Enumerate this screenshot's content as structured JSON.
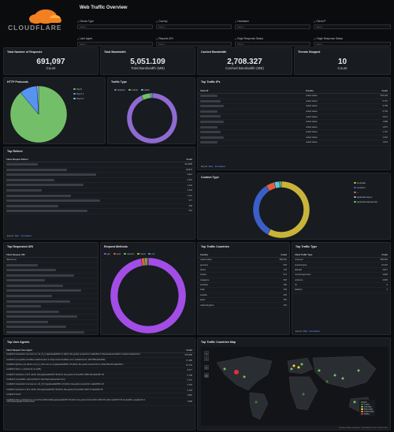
{
  "dashboard": {
    "title": "Web Traffic Overview"
  },
  "logo": {
    "text": "CLOUDFLARE"
  },
  "filters": {
    "device_type": {
      "label": "Device Type",
      "placeholder": "Select..."
    },
    "country": {
      "label": "Country",
      "placeholder": "Select..."
    },
    "hostname": {
      "label": "Hostname",
      "placeholder": "Select..."
    },
    "client_ip": {
      "label": "Client IP",
      "placeholder": "Select..."
    },
    "user_agent": {
      "label": "User Agent",
      "placeholder": "Select..."
    },
    "request_uri": {
      "label": "Request URI",
      "placeholder": "Select..."
    },
    "edge_status": {
      "label": "Edge Response Status",
      "placeholder": "Select..."
    },
    "origin_status": {
      "label": "Origin Response Status",
      "placeholder": "Select..."
    }
  },
  "stats": {
    "requests": {
      "title": "Total Number of Requests",
      "value": "691,097",
      "unit": "Count"
    },
    "bandwidth": {
      "title": "Total Bandwidth",
      "value": "5,051.109",
      "unit": "Total Bandwidth (MB)"
    },
    "cached": {
      "title": "Cached Bandwidth",
      "value": "2,708.327",
      "unit": "Cached Bandwidth (MB)"
    },
    "threats": {
      "title": "Threats Stopped",
      "value": "10",
      "unit": "Count"
    }
  },
  "http_protocols": {
    "title": "HTTP Protocols",
    "legend": [
      "http/2",
      "http/1.1",
      "http/1.0"
    ],
    "colors": [
      "#73bf69",
      "#5794f2",
      "#8ab8ff"
    ],
    "values": [
      89,
      10,
      1
    ]
  },
  "traffic_type": {
    "title": "Traffic Type",
    "legend": [
      "desktop",
      "mobile",
      "tablet"
    ],
    "colors": [
      "#8f6bd1",
      "#73bf69",
      "#5ec4e6"
    ],
    "values": [
      93,
      6,
      1
    ]
  },
  "top_ips": {
    "title": "Top Traffic IPs",
    "headers": [
      "Client IP",
      "Country",
      "Count"
    ],
    "rows": [
      [
        "united states",
        "578,233"
      ],
      [
        "united states",
        "5,767"
      ],
      [
        "united states",
        "5,795"
      ],
      [
        "united states",
        "5,763"
      ],
      [
        "united states",
        "2,021"
      ],
      [
        "united states",
        "1,989"
      ],
      [
        "united states",
        "1,874"
      ],
      [
        "united states",
        "1,731"
      ],
      [
        "united states",
        "1,491"
      ],
      [
        "united states",
        "1,514"
      ]
    ],
    "export": "Export",
    "csv": "Raw",
    "formatted": "Formatted"
  },
  "top_referer": {
    "title": "Top Referer",
    "headers": [
      "Client Request Referer",
      "Count"
    ],
    "rows": [
      "614,889",
      "29,879",
      "2,612",
      "2,291",
      "1,444",
      "1,443",
      "1,111",
      "577",
      "549",
      "537"
    ],
    "export": "Export",
    "csv": "Raw",
    "formatted": "Formatted"
  },
  "content_type": {
    "title": "Content Type",
    "legend": [
      "text/plain",
      "text/html",
      "--",
      "application/json",
      "application/javascript"
    ],
    "colors": [
      "#c9b43b",
      "#3b5fc9",
      "#e0603c",
      "#5ec4e6",
      "#73bf69"
    ],
    "values": [
      58,
      33,
      5,
      3,
      1
    ]
  },
  "top_uri": {
    "title": "Top Requested URI",
    "headers": [
      "Client Request URI"
    ],
    "first": "/favicon.ico"
  },
  "request_methods": {
    "title": "Request Methods",
    "legend": [
      "get",
      "post",
      "options",
      "head",
      "put"
    ],
    "colors": [
      "#a24ee6",
      "#e0603c",
      "#73bf69",
      "#c9b43b",
      "#5794f2"
    ],
    "values": [
      97,
      1.5,
      0.8,
      0.5,
      0.2
    ]
  },
  "top_countries": {
    "title": "Top Traffic Countries",
    "headers": [
      "Country",
      "Count"
    ],
    "rows": [
      [
        "united states",
        "682,651"
      ],
      [
        "germany",
        "878"
      ],
      [
        "france",
        "792"
      ],
      [
        "ireland",
        "572"
      ],
      [
        "singapore",
        "528"
      ],
      [
        "australia",
        "469"
      ],
      [
        "india",
        "433"
      ],
      [
        "canada",
        "426"
      ],
      [
        "japan",
        "394"
      ],
      [
        "united kingdom",
        "332"
      ]
    ]
  },
  "top_traffic_type": {
    "title": "Top Traffic Type",
    "headers": [
      "Client Traffic Type",
      "Count"
    ],
    "rows": [
      [
        "noneconl",
        "665,062"
      ],
      [
        "searchengine",
        "10,375"
      ],
      [
        "allowlist",
        "5,817"
      ],
      [
        "monitoringservice",
        "4,984"
      ],
      [
        "unknown",
        "2,829"
      ],
      [
        "tor",
        "9"
      ],
      [
        "badhost",
        "3"
      ]
    ],
    "export": "Export",
    "csv": "Raw",
    "formatted": "Formatted"
  },
  "top_user_agents": {
    "title": "Top User Agents",
    "headers": [
      "Client Request User Agent",
      "Count"
    ],
    "rows": [
      [
        "mozilla/5.0 (macintosh; intel mac os x 10_11_1) applewebkit/601.2.4 (khtml, like gecko) version/9.0.1 safari/601.2.4 facebookexternalhit/1.1 facebot twitterbot/2.0",
        "578,838"
      ],
      [
        "mozilla/5.0 (compatible;cloudflare-healthchecks/1.0;+https://www.cloudflare.com/; healthcheck-id: 1647785bda1b4bd8)",
        "17,285"
      ],
      [
        "mozilla/5.0 (iphone; cpu iphone os 14_4_2 like mac os x) applewebkit/605.1.15 (khtml, like gecko) version/14.0.3 mobile/15e148 safari/604.1",
        "10,754"
      ],
      [
        "mozilla/5.0 (linux; u; android 12; sm-t220)",
        "8,117"
      ],
      [
        "mozilla/5.0 (windows nt 10.0; win64; x64) applewebkit/537.36 (khtml, like gecko) chrome/89.0.4389.128 safari/537.36",
        "5,738"
      ],
      [
        "mozilla/5.0 (compatible; uptimerobot/2.0; http://www.uptimerobot.com/)",
        "5,767"
      ],
      [
        "mozilla/5.0 (macintosh; intel mac os x 10_15_6) applewebkit/605.1.15 (khtml, like gecko) version/14.1 safari/605.1.15",
        "2,763"
      ],
      [
        "mozilla/5.0 (windows nt 10.0; win64; x64) applewebkit/537.36 (khtml, like gecko) chrome/90.0.4430.72 safari/537.36",
        "2,136"
      ],
      [
        "mozilla/5.0 firefox",
        "1,862"
      ],
      [
        "mozilla/5.0 (linux; android 6.0.1; nexus 5x build/mmb29p) applewebkit/537.36 (khtml, like gecko) chrome/90.0.4430.93 mobile safari/537.36 (compatible; googlebot/2.1; +http://www.google.com/bot.html)",
        "1,568"
      ]
    ]
  },
  "traffic_map": {
    "title": "Top Traffic Countries Map",
    "legend_title": "Count",
    "legend": [
      "0-100",
      "100-500",
      "500-1000",
      "1000-5000",
      "5000+"
    ],
    "attribution": "OpenStreetMap contributors, OpenMapTiles, Esri, Grafana Labs"
  }
}
